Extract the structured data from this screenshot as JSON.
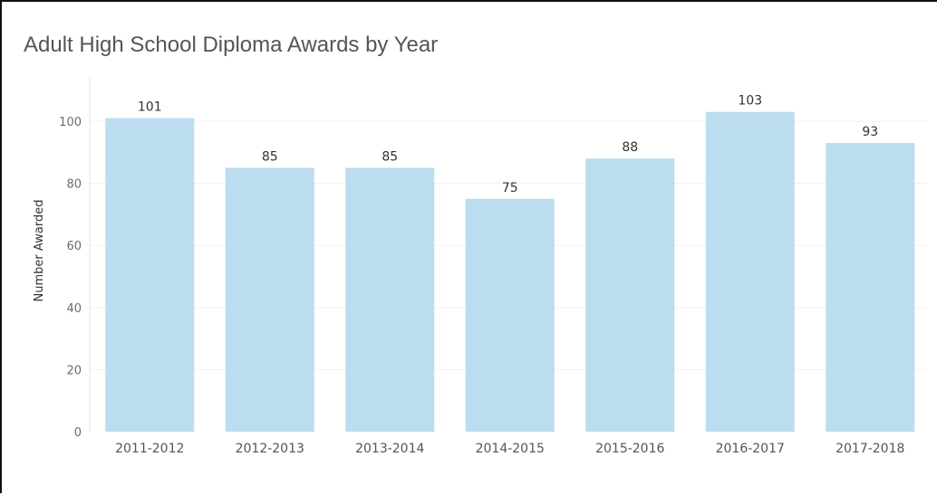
{
  "chart_data": {
    "type": "bar",
    "title": "Adult High School Diploma Awards by Year",
    "xlabel": "",
    "ylabel": "Number Awarded",
    "categories": [
      "2011-2012",
      "2012-2013",
      "2013-2014",
      "2014-2015",
      "2015-2016",
      "2016-2017",
      "2017-2018"
    ],
    "values": [
      101,
      85,
      85,
      75,
      88,
      103,
      93
    ],
    "data_labels": [
      "101",
      "85",
      "85",
      "75",
      "88",
      "103",
      "93"
    ],
    "yticks": [
      0,
      20,
      40,
      60,
      80,
      100
    ],
    "ytick_labels": [
      "0",
      "20",
      "40",
      "60",
      "80",
      "100"
    ],
    "ylim": [
      0,
      112
    ],
    "grid": true,
    "bar_color": "#bcdcef",
    "gridline_color": "#f0f0f0"
  }
}
